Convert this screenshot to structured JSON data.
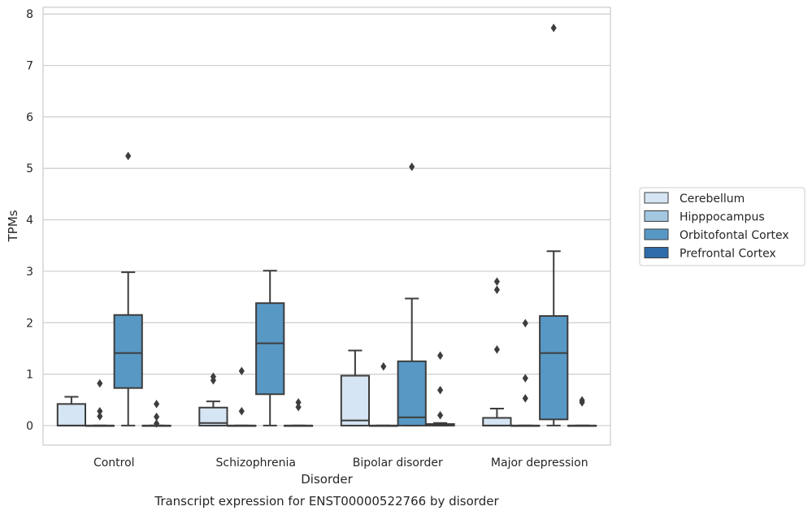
{
  "chart_data": {
    "type": "box",
    "title": "",
    "caption": "Transcript expression for ENST00000522766 by disorder",
    "xlabel": "Disorder",
    "ylabel": "TPMs",
    "ylim": [
      -0.38,
      8.13
    ],
    "yticks": [
      0,
      1,
      2,
      3,
      4,
      5,
      6,
      7,
      8
    ],
    "grid": "horizontal",
    "legend_position": "right",
    "categories": [
      "Control",
      "Schizophrenia",
      "Bipolar disorder",
      "Major depression"
    ],
    "series": [
      {
        "name": "Cerebellum",
        "color": "#d6e5f3",
        "boxes": [
          {
            "min": 0,
            "q1": 0,
            "median": 0,
            "q3": 0.42,
            "max": 0.56,
            "outliers": []
          },
          {
            "min": 0,
            "q1": 0,
            "median": 0.05,
            "q3": 0.35,
            "max": 0.47,
            "outliers": [
              0.88,
              0.95
            ]
          },
          {
            "min": 0,
            "q1": 0,
            "median": 0.1,
            "q3": 0.97,
            "max": 1.46,
            "outliers": []
          },
          {
            "min": 0,
            "q1": 0,
            "median": 0,
            "q3": 0.15,
            "max": 0.33,
            "outliers": [
              1.48,
              2.64,
              2.8
            ]
          }
        ]
      },
      {
        "name": "Hipppocampus",
        "color": "#a3c6e1",
        "boxes": [
          {
            "min": 0,
            "q1": 0,
            "median": 0,
            "q3": 0,
            "max": 0,
            "outliers": [
              0.18,
              0.28,
              0.82
            ]
          },
          {
            "min": 0,
            "q1": 0,
            "median": 0,
            "q3": 0,
            "max": 0,
            "outliers": [
              0.28,
              1.06
            ]
          },
          {
            "min": 0,
            "q1": 0,
            "median": 0,
            "q3": 0,
            "max": 0,
            "outliers": [
              1.15
            ]
          },
          {
            "min": 0,
            "q1": 0,
            "median": 0,
            "q3": 0,
            "max": 0,
            "outliers": [
              0.53,
              0.92,
              1.99
            ]
          }
        ]
      },
      {
        "name": "Orbitofontal Cortex",
        "color": "#5898c5",
        "boxes": [
          {
            "min": 0,
            "q1": 0.73,
            "median": 1.41,
            "q3": 2.15,
            "max": 2.98,
            "outliers": [
              5.24
            ]
          },
          {
            "min": 0,
            "q1": 0.61,
            "median": 1.6,
            "q3": 2.38,
            "max": 3.01,
            "outliers": []
          },
          {
            "min": 0,
            "q1": 0,
            "median": 0.16,
            "q3": 1.25,
            "max": 2.47,
            "outliers": [
              5.03
            ]
          },
          {
            "min": 0,
            "q1": 0.12,
            "median": 1.41,
            "q3": 2.13,
            "max": 3.39,
            "outliers": [
              7.73
            ]
          }
        ]
      },
      {
        "name": "Prefrontal Cortex",
        "color": "#2e6ba9",
        "boxes": [
          {
            "min": 0,
            "q1": 0,
            "median": 0,
            "q3": 0,
            "max": 0,
            "outliers": [
              0.04,
              0.17,
              0.42
            ]
          },
          {
            "min": 0,
            "q1": 0,
            "median": 0,
            "q3": 0,
            "max": 0,
            "outliers": [
              0.36,
              0.45
            ]
          },
          {
            "min": 0,
            "q1": 0,
            "median": 0.01,
            "q3": 0.03,
            "max": 0.05,
            "outliers": [
              0.2,
              0.69,
              1.36
            ]
          },
          {
            "min": 0,
            "q1": 0,
            "median": 0,
            "q3": 0,
            "max": 0,
            "outliers": [
              0.45,
              0.49
            ]
          }
        ]
      }
    ]
  }
}
